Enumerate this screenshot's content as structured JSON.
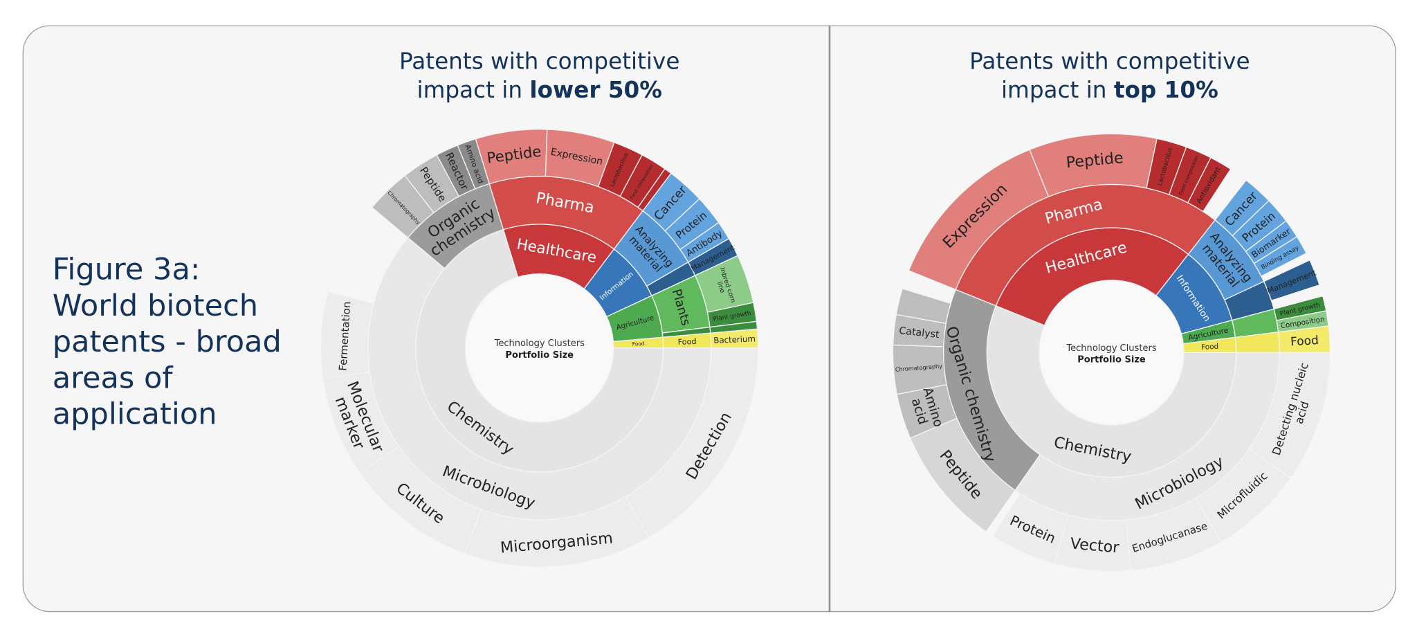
{
  "caption": {
    "lines": [
      "Figure 3a:",
      "World biotech",
      "patents - broad",
      "areas of",
      "application"
    ]
  },
  "center_label": {
    "line1": "Technology Clusters",
    "line2": "Portfolio Size"
  },
  "palette": {
    "Healthcare": [
      "#c8383a",
      "#d24c49",
      "#e07f7c"
    ],
    "Information": [
      "#3776b8",
      "#5898d4",
      "#64a4de"
    ],
    "Agriculture": [
      "#4daa4f",
      "#61b95e",
      "#8ccb88"
    ],
    "Food": [
      "#f1e75a",
      "#f1e75a",
      "#f3ea6a"
    ],
    "Chemistry": [
      "#e4e4e4",
      "#e8e8e8",
      "#ececec"
    ],
    "Organic chemistry": [
      "#9b9b9b",
      "#9b9b9b",
      "#bdbdbd"
    ],
    "accent_dark_red": "#b52c2f",
    "accent_dark_blue": "#2c5f8f",
    "accent_dark_green": "#3c8c3e"
  },
  "chart_data": [
    {
      "type": "sunburst",
      "title_prefix": "Patents with competitive",
      "title_mid": "impact in ",
      "title_bold": "lower 50%",
      "nodes": [
        {
          "name": "Healthcare",
          "value": 54,
          "children": [
            {
              "name": "Pharma",
              "value": 54,
              "children": [
                {
                  "name": "Peptide",
                  "value": 19
                },
                {
                  "name": "Expression",
                  "value": 18
                },
                {
                  "name": "Lactobacillus",
                  "value": 8,
                  "dark": true
                },
                {
                  "name": "Food composition",
                  "value": 7,
                  "dark": true
                },
                {
                  "name": "",
                  "value": 2,
                  "dark": true
                }
              ]
            }
          ]
        },
        {
          "name": "Information",
          "value": 28,
          "children": [
            {
              "name": "Analyzing material",
              "value": 23,
              "children": [
                {
                  "name": "Cancer",
                  "value": 10
                },
                {
                  "name": "Protein",
                  "value": 8
                },
                {
                  "name": "Antibody",
                  "value": 5
                }
              ]
            },
            {
              "name": "",
              "value": 5,
              "dark": true,
              "children": [
                {
                  "name": "Management",
                  "value": 5,
                  "dark": true
                }
              ]
            }
          ]
        },
        {
          "name": "Agriculture",
          "value": 20,
          "children": [
            {
              "name": "Plants",
              "value": 18,
              "children": [
                {
                  "name": "Inbred corn line",
                  "value": 13
                },
                {
                  "name": "Plant growth",
                  "value": 5,
                  "dark": true
                }
              ]
            },
            {
              "name": "",
              "value": 2,
              "dark": true,
              "children": [
                {
                  "name": "",
                  "value": 2,
                  "dark": true
                }
              ]
            }
          ]
        },
        {
          "name": "Food",
          "value": 5,
          "children": [
            {
              "name": "Food",
              "value": 5,
              "children": [
                {
                  "name": "Bacterium",
                  "value": 5
                }
              ]
            }
          ]
        },
        {
          "name": "Chemistry",
          "value": 253,
          "children": [
            {
              "name": "Microbiology",
              "value": 220,
              "children": [
                {
                  "name": "Detection",
                  "value": 60
                },
                {
                  "name": "Microorganism",
                  "value": 50
                },
                {
                  "name": "Culture",
                  "value": 35
                },
                {
                  "name": "Molecular marker",
                  "value": 27
                },
                {
                  "name": "Fermentation",
                  "value": 23
                }
              ]
            },
            {
              "name": "Organic chemistry",
              "value": 33,
              "group": "Organic chemistry",
              "children": [
                {
                  "name": "Chromatography",
                  "value": 12
                },
                {
                  "name": "Peptide",
                  "value": 10
                },
                {
                  "name": "Reactor",
                  "value": 6,
                  "dark": true
                },
                {
                  "name": "Amino acid",
                  "value": 5,
                  "dark": true
                }
              ]
            }
          ]
        }
      ]
    },
    {
      "type": "sunburst",
      "title_prefix": "Patents with competitive",
      "title_mid": "impact in ",
      "title_bold": "top 10%",
      "nodes": [
        {
          "name": "Healthcare",
          "value": 106,
          "children": [
            {
              "name": "Pharma",
              "value": 106,
              "children": [
                {
                  "name": "Expression",
                  "value": 46
                },
                {
                  "name": "Peptide",
                  "value": 34
                },
                {
                  "name": "Lactobacillus",
                  "value": 8,
                  "dark": true
                },
                {
                  "name": "Food composition",
                  "value": 7,
                  "dark": true
                },
                {
                  "name": "Antioxidant",
                  "value": 6,
                  "dark": true
                }
              ]
            }
          ]
        },
        {
          "name": "Information",
          "value": 37,
          "children": [
            {
              "name": "Analyzing material",
              "value": 27,
              "children": [
                {
                  "name": "Cancer",
                  "value": 8
                },
                {
                  "name": "Protein",
                  "value": 7
                },
                {
                  "name": "Biomarker",
                  "value": 5
                },
                {
                  "name": "Binding assay",
                  "value": 5
                }
              ]
            },
            {
              "name": "",
              "value": 10,
              "dark": true,
              "children": [
                {
                  "name": "Management",
                  "value": 7,
                  "dark": true
                }
              ]
            }
          ]
        },
        {
          "name": "Agriculture",
          "value": 8,
          "children": [
            {
              "name": "",
              "value": 8,
              "children": [
                {
                  "name": "Plant growth",
                  "value": 4,
                  "dark": true
                },
                {
                  "name": "Composition",
                  "value": 4
                }
              ]
            }
          ]
        },
        {
          "name": "Food",
          "value": 7,
          "children": [
            {
              "name": "",
              "value": 7,
              "children": [
                {
                  "name": "Food",
                  "value": 7
                }
              ]
            }
          ]
        },
        {
          "name": "Chemistry",
          "value": 202,
          "children": [
            {
              "name": "Microbiology",
              "value": 125,
              "children": [
                {
                  "name": "Detecting nucleic acid",
                  "value": 35
                },
                {
                  "name": "Microfluidic",
                  "value": 25
                },
                {
                  "name": "Endoglucanase",
                  "value": 25
                },
                {
                  "name": "Vector",
                  "value": 20
                },
                {
                  "name": "Protein",
                  "value": 18
                }
              ]
            },
            {
              "name": "Organic chemistry",
              "value": 77,
              "group": "Organic chemistry",
              "children": [
                {
                  "name": "Peptide",
                  "value": 32,
                  "light": true
                },
                {
                  "name": "Amino acid",
                  "value": 12
                },
                {
                  "name": "Chromatography",
                  "value": 13
                },
                {
                  "name": "Catalyst",
                  "value": 8
                },
                {
                  "name": "",
                  "value": 7
                }
              ]
            }
          ]
        }
      ]
    }
  ]
}
